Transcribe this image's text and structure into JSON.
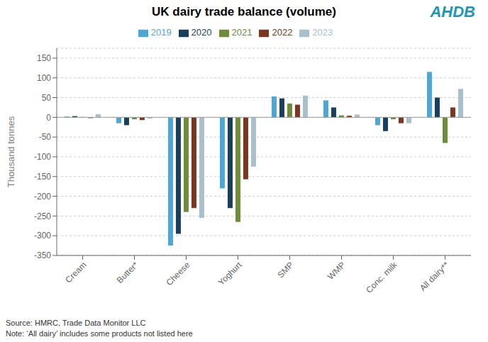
{
  "chart_data": {
    "type": "bar",
    "title": "UK dairy trade balance (volume)",
    "y_label": "Thousand tonnes",
    "categories": [
      "Cream",
      "Butter*",
      "Cheese",
      "Yoghurt",
      "SMP",
      "WMP",
      "Conc. milk",
      "All dairy**"
    ],
    "series": [
      {
        "name": "2019",
        "color": "#4da6d4",
        "values": [
          2,
          -15,
          -325,
          -180,
          53,
          43,
          -20,
          115
        ]
      },
      {
        "name": "2020",
        "color": "#1a3f5c",
        "values": [
          3,
          -20,
          -295,
          -230,
          48,
          25,
          -35,
          50
        ]
      },
      {
        "name": "2021",
        "color": "#6e8c3a",
        "values": [
          1,
          -5,
          -240,
          -265,
          35,
          5,
          -5,
          -65
        ]
      },
      {
        "name": "2022",
        "color": "#7b3620",
        "values": [
          -2,
          -7,
          -230,
          -157,
          32,
          4,
          -15,
          25
        ]
      },
      {
        "name": "2023",
        "color": "#a9bfcc",
        "values": [
          8,
          -3,
          -255,
          -125,
          55,
          7,
          -15,
          72
        ]
      }
    ],
    "ylim": [
      -350,
      175
    ],
    "yticks": [
      -350,
      -300,
      -250,
      -200,
      -150,
      -100,
      -50,
      0,
      50,
      100,
      150
    ],
    "grid": true,
    "legend": "top",
    "annotations": [
      "AHDB",
      "Source: HMRC, Trade Data Monitor LLC",
      "Note: ‘All dairy’ includes some products not listed here"
    ]
  }
}
